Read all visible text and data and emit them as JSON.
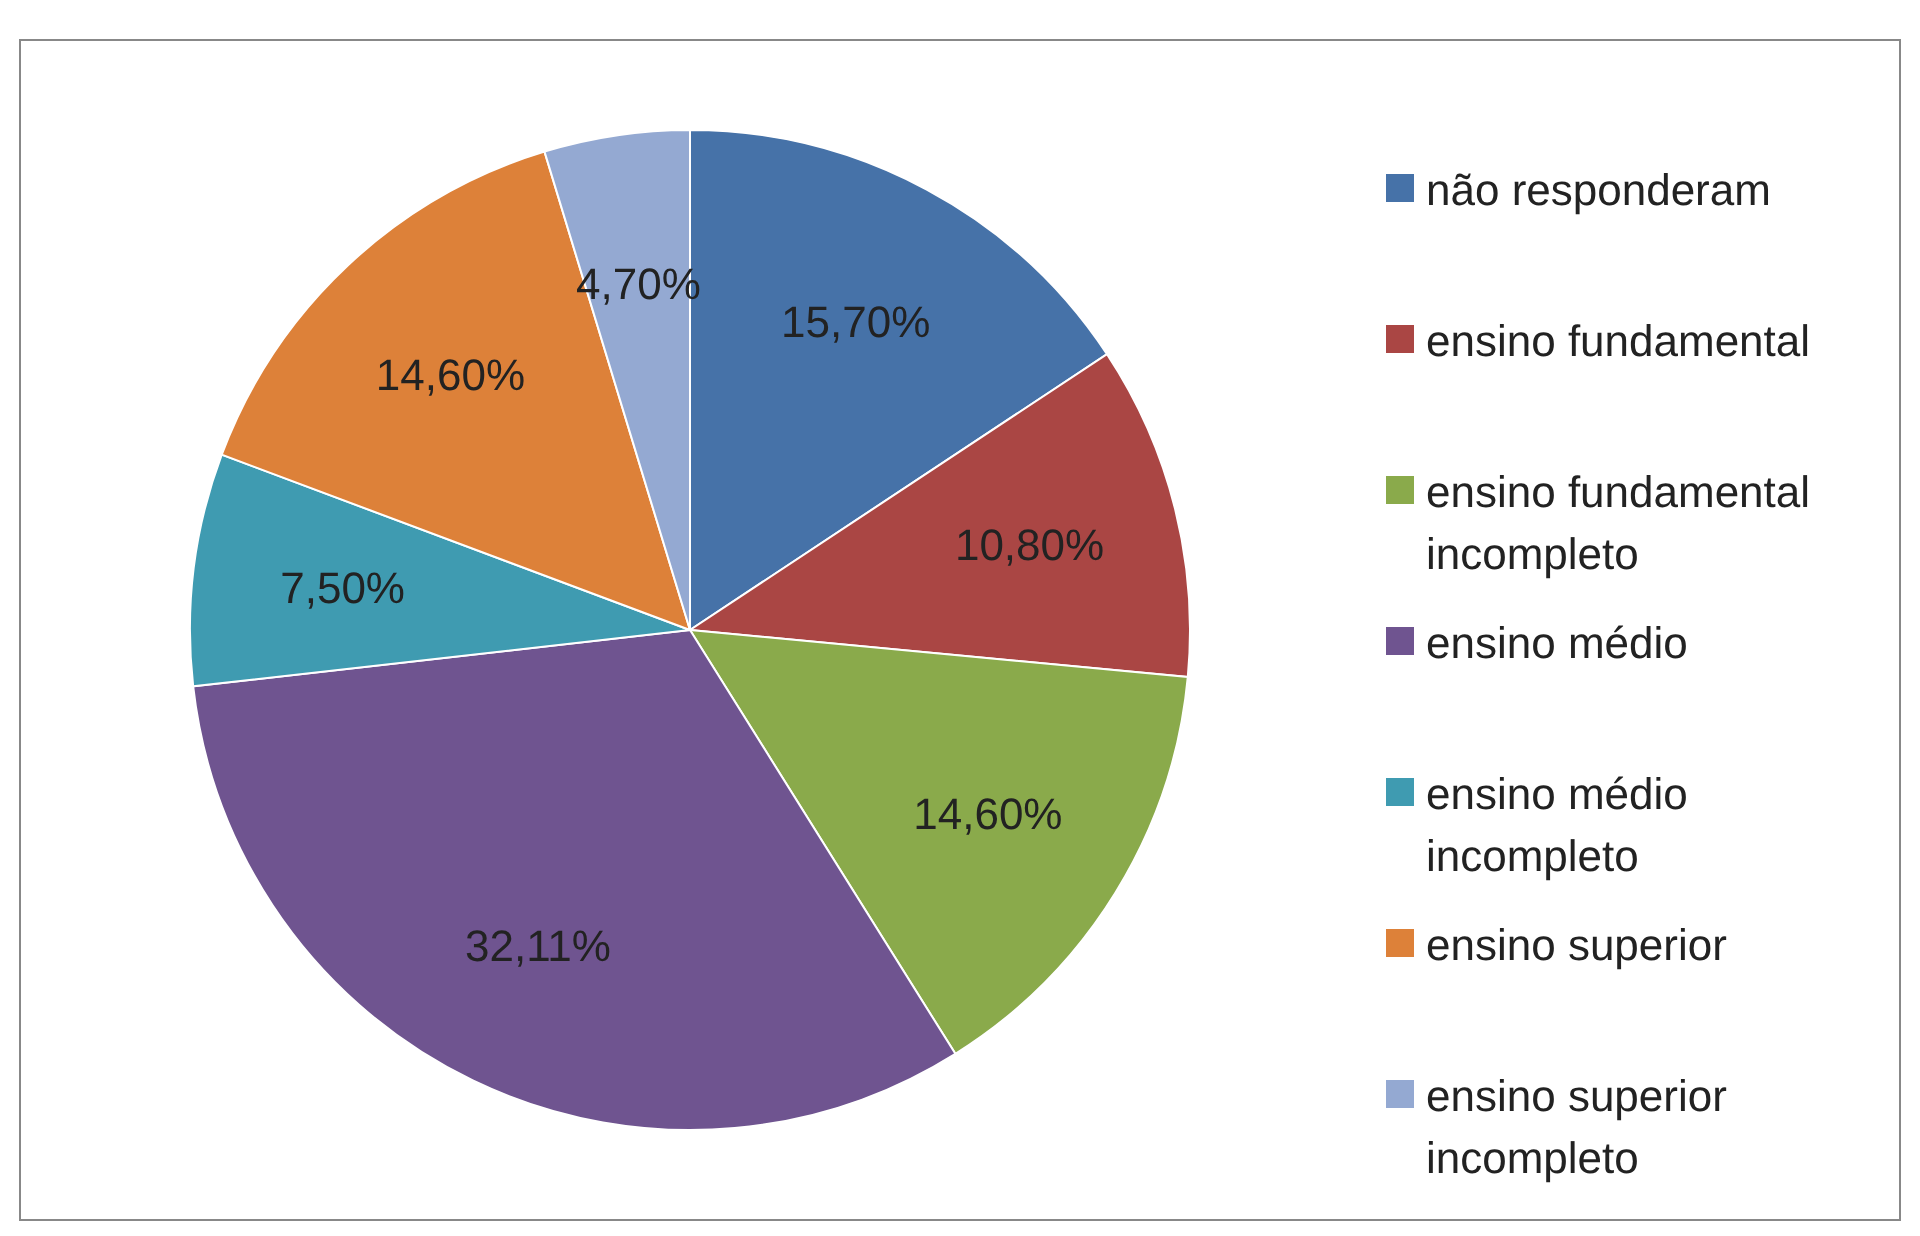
{
  "chart_data": {
    "type": "pie",
    "categories": [
      "não responderam",
      "ensino fundamental",
      "ensino fundamental incompleto",
      "ensino médio",
      "ensino médio incompleto",
      "ensino superior",
      "ensino superior incompleto"
    ],
    "values": [
      15.7,
      10.8,
      14.6,
      32.11,
      7.5,
      14.6,
      4.7
    ],
    "value_labels": [
      "15,70%",
      "10,80%",
      "14,60%",
      "32,11%",
      "7,50%",
      "14,60%",
      "4,70%"
    ],
    "colors": [
      "#4672a8",
      "#aa4644",
      "#8aaa4b",
      "#6f5490",
      "#3f9bb1",
      "#dd8139",
      "#94a9d2"
    ],
    "legend": "right"
  }
}
